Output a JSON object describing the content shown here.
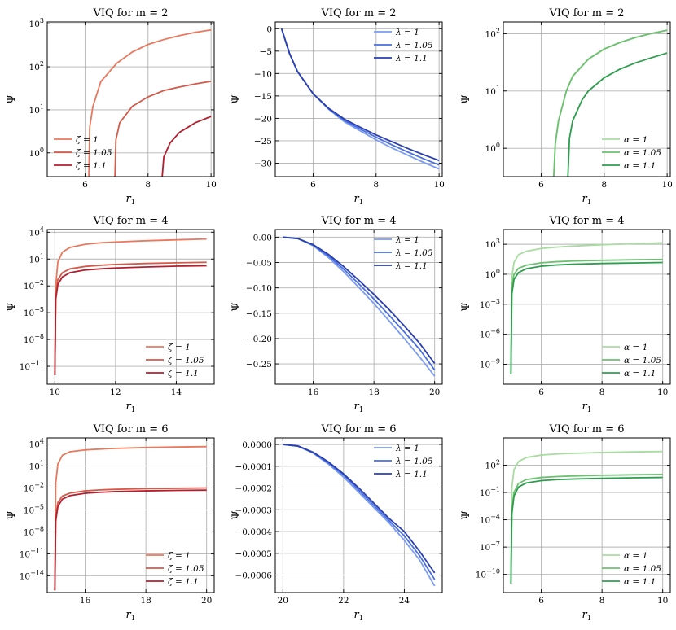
{
  "chart_data": [
    {
      "type": "line",
      "title": "VIQ for m = 2",
      "xlabel": "r_1",
      "ylabel": "Ψ",
      "xscale": "linear",
      "yscale": "log",
      "xlim": [
        4.8,
        10.1
      ],
      "ylim": [
        0.28,
        1100
      ],
      "xticks": [
        6,
        8,
        10
      ],
      "yticks": [
        1,
        10,
        100,
        1000
      ],
      "ytick_labels": [
        "10^0",
        "10^1",
        "10^2",
        "10^3"
      ],
      "legend_loc": "lower-left",
      "grid": true,
      "series": [
        {
          "name": "ζ = 1",
          "color": "#e8785e",
          "x": [
            6.12,
            6.15,
            6.25,
            6.5,
            7,
            7.5,
            8,
            8.5,
            9,
            9.5,
            10
          ],
          "y": [
            0.28,
            4,
            12,
            45,
            120,
            220,
            330,
            430,
            530,
            630,
            720
          ]
        },
        {
          "name": "ζ = 1.05",
          "color": "#d45a4a",
          "x": [
            6.95,
            6.98,
            7.1,
            7.5,
            8,
            8.5,
            9,
            9.5,
            10
          ],
          "y": [
            0.28,
            2,
            5,
            12,
            20,
            28,
            34,
            40,
            46
          ]
        },
        {
          "name": "ζ = 1.1",
          "color": "#b21f2d",
          "x": [
            8.45,
            8.5,
            8.7,
            9,
            9.5,
            10
          ],
          "y": [
            0.28,
            0.8,
            1.7,
            3,
            5,
            7
          ]
        }
      ]
    },
    {
      "type": "line",
      "title": "VIQ for m = 2",
      "xlabel": "r_1",
      "ylabel": "Ψ",
      "xscale": "linear",
      "yscale": "linear",
      "xlim": [
        4.8,
        10.1
      ],
      "ylim": [
        -33,
        1.5
      ],
      "xticks": [
        6,
        8,
        10
      ],
      "yticks": [
        0,
        -5,
        -10,
        -15,
        -20,
        -25,
        -30
      ],
      "ytick_labels": [
        "0",
        "−5",
        "−10",
        "−15",
        "−20",
        "−25",
        "−30"
      ],
      "legend_loc": "top-right",
      "grid": true,
      "series": [
        {
          "name": "λ = 1",
          "color": "#7b9cf0",
          "x": [
            5,
            5.25,
            5.5,
            6,
            6.5,
            7,
            7.5,
            8,
            8.5,
            9,
            9.5,
            10
          ],
          "y": [
            0,
            -5.5,
            -9.5,
            -14.5,
            -18,
            -20.8,
            -22.8,
            -24.8,
            -26.6,
            -28.2,
            -29.8,
            -31.3
          ]
        },
        {
          "name": "λ = 1.05",
          "color": "#4a6fe0",
          "x": [
            5,
            5.25,
            5.5,
            6,
            6.5,
            7,
            7.5,
            8,
            8.5,
            9,
            9.5,
            10
          ],
          "y": [
            0,
            -5.5,
            -9.5,
            -14.5,
            -17.9,
            -20.5,
            -22.4,
            -24.2,
            -25.9,
            -27.5,
            -29,
            -30.4
          ]
        },
        {
          "name": "λ = 1.1",
          "color": "#2a3fb0",
          "x": [
            5,
            5.25,
            5.5,
            6,
            6.5,
            7,
            7.5,
            8,
            8.5,
            9,
            9.5,
            10
          ],
          "y": [
            0,
            -5.5,
            -9.5,
            -14.5,
            -17.8,
            -20.2,
            -22,
            -23.7,
            -25.2,
            -26.7,
            -28.1,
            -29.4
          ]
        }
      ]
    },
    {
      "type": "line",
      "title": "VIQ for m = 2",
      "xlabel": "r_1",
      "ylabel": "Ψ",
      "xscale": "linear",
      "yscale": "log",
      "xlim": [
        4.8,
        10.1
      ],
      "ylim": [
        0.32,
        160
      ],
      "xticks": [
        6,
        8,
        10
      ],
      "yticks": [
        1,
        10,
        100
      ],
      "ytick_labels": [
        "10^0",
        "10^1",
        "10^2"
      ],
      "legend_loc": "lower-right",
      "grid": true,
      "series": [
        {
          "name": "α = 1",
          "color": "#a8dca0",
          "x": [
            6.4,
            6.45,
            6.55,
            6.8,
            7,
            7.5,
            8,
            8.5,
            9,
            9.5,
            10
          ],
          "y": [
            0.32,
            1.2,
            3,
            10,
            18,
            36,
            54,
            70,
            86,
            101,
            115
          ]
        },
        {
          "name": "α = 1.05",
          "color": "#6cc070",
          "x": [
            6.4,
            6.45,
            6.55,
            6.8,
            7,
            7.5,
            8,
            8.5,
            9,
            9.5,
            10
          ],
          "y": [
            0.32,
            1.2,
            3,
            10,
            18,
            36,
            54,
            70,
            86,
            101,
            115
          ]
        },
        {
          "name": "α = 1.1",
          "color": "#2e9e4e",
          "x": [
            6.85,
            6.9,
            7,
            7.3,
            7.5,
            8,
            8.5,
            9,
            9.5,
            10
          ],
          "y": [
            0.32,
            1.5,
            3,
            7,
            10,
            17,
            24,
            31,
            38,
            46
          ]
        }
      ]
    },
    {
      "type": "line",
      "title": "VIQ for m = 4",
      "xlabel": "r_1",
      "ylabel": "Ψ",
      "xscale": "linear",
      "yscale": "log",
      "xlim": [
        9.75,
        15.25
      ],
      "ylim": [
        1e-13,
        20000
      ],
      "xticks": [
        10,
        12,
        14
      ],
      "yticks": [
        1e-11,
        1e-08,
        1e-05,
        0.01,
        10,
        10000
      ],
      "ytick_labels": [
        "10^−11",
        "10^−8",
        "10^−5",
        "10^−2",
        "10^1",
        "10^4"
      ],
      "legend_loc": "lower-right",
      "grid": true,
      "series": [
        {
          "name": "ζ = 1",
          "color": "#e8785e",
          "x": [
            10,
            10.03,
            10.1,
            10.25,
            10.5,
            11,
            11.5,
            12,
            13,
            14,
            15
          ],
          "y": [
            1e-12,
            0.01,
            5,
            60,
            200,
            450,
            650,
            800,
            1100,
            1400,
            1750
          ]
        },
        {
          "name": "ζ = 1.05",
          "color": "#d45a4a",
          "x": [
            10,
            10.03,
            10.1,
            10.25,
            10.5,
            11,
            11.5,
            12,
            13,
            14,
            15
          ],
          "y": [
            1e-12,
            0.001,
            0.05,
            0.3,
            0.8,
            1.5,
            2,
            2.5,
            3.2,
            3.8,
            4.3
          ]
        },
        {
          "name": "ζ = 1.1",
          "color": "#b21f2d",
          "x": [
            10,
            10.03,
            10.1,
            10.25,
            10.5,
            11,
            11.5,
            12,
            13,
            14,
            15
          ],
          "y": [
            1e-12,
            0.0003,
            0.015,
            0.1,
            0.3,
            0.6,
            0.8,
            1,
            1.3,
            1.6,
            1.8
          ]
        }
      ]
    },
    {
      "type": "line",
      "title": "VIQ for m = 4",
      "xlabel": "r_1",
      "ylabel": "Ψ",
      "xscale": "linear",
      "yscale": "linear",
      "xlim": [
        14.75,
        20.25
      ],
      "ylim": [
        -0.29,
        0.015
      ],
      "xticks": [
        16,
        18,
        20
      ],
      "yticks": [
        0,
        -0.05,
        -0.1,
        -0.15,
        -0.2,
        -0.25
      ],
      "ytick_labels": [
        "0.00",
        "−0.05",
        "−0.10",
        "−0.15",
        "−0.20",
        "−0.25"
      ],
      "legend_loc": "top-right",
      "grid": true,
      "series": [
        {
          "name": "λ = 1",
          "color": "#7b9cf0",
          "x": [
            15,
            15.5,
            16,
            16.5,
            17,
            17.5,
            18,
            18.5,
            19,
            19.5,
            20
          ],
          "y": [
            0,
            -0.003,
            -0.017,
            -0.04,
            -0.068,
            -0.099,
            -0.131,
            -0.165,
            -0.2,
            -0.236,
            -0.274
          ]
        },
        {
          "name": "λ = 1.05",
          "color": "#4a6fe0",
          "x": [
            15,
            15.5,
            16,
            16.5,
            17,
            17.5,
            18,
            18.5,
            19,
            19.5,
            20
          ],
          "y": [
            0,
            -0.003,
            -0.016,
            -0.037,
            -0.063,
            -0.092,
            -0.122,
            -0.154,
            -0.187,
            -0.221,
            -0.262
          ]
        },
        {
          "name": "λ = 1.1",
          "color": "#2a3fb0",
          "x": [
            15,
            15.5,
            16,
            16.5,
            17,
            17.5,
            18,
            18.5,
            19,
            19.5,
            20
          ],
          "y": [
            0,
            -0.003,
            -0.015,
            -0.034,
            -0.058,
            -0.085,
            -0.113,
            -0.143,
            -0.175,
            -0.209,
            -0.249
          ]
        }
      ]
    },
    {
      "type": "line",
      "title": "VIQ for m = 4",
      "xlabel": "r_1",
      "ylabel": "Ψ",
      "xscale": "linear",
      "yscale": "log",
      "xlim": [
        4.75,
        10.25
      ],
      "ylim": [
        1e-11,
        30000
      ],
      "xticks": [
        6,
        8,
        10
      ],
      "yticks": [
        1e-09,
        1e-06,
        0.001,
        1,
        1000
      ],
      "ytick_labels": [
        "10^−9",
        "10^−6",
        "10^−3",
        "10^0",
        "10^3"
      ],
      "legend_loc": "lower-right",
      "grid": true,
      "series": [
        {
          "name": "α = 1",
          "color": "#a8dca0",
          "x": [
            5,
            5.03,
            5.1,
            5.25,
            5.5,
            6,
            6.5,
            7,
            8,
            9,
            10
          ],
          "y": [
            1e-10,
            0.5,
            15,
            90,
            200,
            380,
            520,
            650,
            900,
            1150,
            1400
          ]
        },
        {
          "name": "α = 1.05",
          "color": "#6cc070",
          "x": [
            5,
            5.03,
            5.1,
            5.25,
            5.5,
            6,
            6.5,
            7,
            8,
            9,
            10
          ],
          "y": [
            1e-10,
            0.05,
            1,
            4,
            8,
            14,
            18,
            21,
            25,
            28,
            30
          ]
        },
        {
          "name": "α = 1.1",
          "color": "#2e9e4e",
          "x": [
            5,
            5.03,
            5.1,
            5.25,
            5.5,
            6,
            6.5,
            7,
            8,
            9,
            10
          ],
          "y": [
            1e-10,
            0.01,
            0.3,
            1.5,
            3.5,
            6.5,
            8.5,
            10,
            12,
            13.5,
            15
          ]
        }
      ]
    },
    {
      "type": "line",
      "title": "VIQ for m = 6",
      "xlabel": "r_1",
      "ylabel": "Ψ",
      "xscale": "linear",
      "yscale": "log",
      "xlim": [
        14.75,
        20.25
      ],
      "ylim": [
        5e-17,
        70000
      ],
      "xticks": [
        16,
        18,
        20
      ],
      "yticks": [
        1e-14,
        1e-11,
        1e-08,
        1e-05,
        0.01,
        10,
        10000
      ],
      "ytick_labels": [
        "10^−14",
        "10^−11",
        "10^−8",
        "10^−5",
        "10^−2",
        "10^1",
        "10^4"
      ],
      "legend_loc": "lower-right",
      "grid": true,
      "series": [
        {
          "name": "ζ = 1",
          "color": "#e8785e",
          "x": [
            15,
            15.03,
            15.1,
            15.25,
            15.5,
            16,
            16.5,
            17,
            18,
            19,
            20
          ],
          "y": [
            1e-16,
            0.05,
            20,
            300,
            900,
            1600,
            2100,
            2600,
            3400,
            4000,
            4500
          ]
        },
        {
          "name": "ζ = 1.05",
          "color": "#d45a4a",
          "x": [
            15,
            15.03,
            15.1,
            15.25,
            15.5,
            16,
            16.5,
            17,
            18,
            19,
            20
          ],
          "y": [
            1e-16,
            1e-06,
            0.0001,
            0.0008,
            0.002,
            0.004,
            0.0055,
            0.0065,
            0.008,
            0.009,
            0.01
          ]
        },
        {
          "name": "ζ = 1.1",
          "color": "#b21f2d",
          "x": [
            15,
            15.03,
            15.1,
            15.25,
            15.5,
            16,
            16.5,
            17,
            18,
            19,
            20
          ],
          "y": [
            1e-16,
            3e-07,
            3e-05,
            0.0003,
            0.0009,
            0.0019,
            0.0026,
            0.0032,
            0.004,
            0.0046,
            0.005
          ]
        }
      ]
    },
    {
      "type": "line",
      "title": "VIQ for m = 6",
      "xlabel": "r_1",
      "ylabel": "Ψ",
      "xscale": "linear",
      "yscale": "linear",
      "xlim": [
        19.75,
        25.25
      ],
      "ylim": [
        -0.00068,
        3e-05
      ],
      "xticks": [
        20,
        22,
        24
      ],
      "yticks": [
        0,
        -0.0001,
        -0.0002,
        -0.0003,
        -0.0004,
        -0.0005,
        -0.0006
      ],
      "ytick_labels": [
        "0.0000",
        "−0.0001",
        "−0.0002",
        "−0.0003",
        "−0.0004",
        "−0.0005",
        "−0.0006"
      ],
      "legend_loc": "top-right",
      "grid": true,
      "series": [
        {
          "name": "λ = 1",
          "color": "#7b9cf0",
          "x": [
            20,
            20.5,
            21,
            21.5,
            22,
            22.5,
            23,
            23.5,
            24,
            24.5,
            25
          ],
          "y": [
            0,
            -8e-06,
            -4e-05,
            -9e-05,
            -0.00015,
            -0.00022,
            -0.00029,
            -0.00036,
            -0.00044,
            -0.00053,
            -0.00065
          ]
        },
        {
          "name": "λ = 1.05",
          "color": "#4a6fe0",
          "x": [
            20,
            20.5,
            21,
            21.5,
            22,
            22.5,
            23,
            23.5,
            24,
            24.5,
            25
          ],
          "y": [
            0,
            -8e-06,
            -3.8e-05,
            -8.5e-05,
            -0.00014,
            -0.00021,
            -0.00028,
            -0.00035,
            -0.00042,
            -0.00051,
            -0.00062
          ]
        },
        {
          "name": "λ = 1.1",
          "color": "#2a3fb0",
          "x": [
            20,
            20.5,
            21,
            21.5,
            22,
            22.5,
            23,
            23.5,
            24,
            24.5,
            25
          ],
          "y": [
            0,
            -7e-06,
            -3.6e-05,
            -8e-05,
            -0.000135,
            -0.0002,
            -0.00027,
            -0.00034,
            -0.0004,
            -0.00049,
            -0.00059
          ]
        }
      ]
    },
    {
      "type": "line",
      "title": "VIQ for m = 6",
      "xlabel": "r_1",
      "ylabel": "Ψ",
      "xscale": "linear",
      "yscale": "log",
      "xlim": [
        4.75,
        10.25
      ],
      "ylim": [
        1e-12,
        100000
      ],
      "xticks": [
        6,
        8,
        10
      ],
      "yticks": [
        1e-10,
        1e-07,
        0.0001,
        0.1,
        100
      ],
      "ytick_labels": [
        "10^−10",
        "10^−7",
        "10^−4",
        "10^−1",
        "10^2"
      ],
      "legend_loc": "lower-right",
      "grid": true,
      "series": [
        {
          "name": "α = 1",
          "color": "#a8dca0",
          "x": [
            5,
            5.03,
            5.1,
            5.25,
            5.5,
            6,
            6.5,
            7,
            8,
            9,
            10
          ],
          "y": [
            1e-11,
            0.3,
            30,
            250,
            700,
            1300,
            1700,
            2000,
            2500,
            2900,
            3200
          ]
        },
        {
          "name": "α = 1.05",
          "color": "#6cc070",
          "x": [
            5,
            5.03,
            5.1,
            5.25,
            5.5,
            6,
            6.5,
            7,
            8,
            9,
            10
          ],
          "y": [
            1e-11,
            0.001,
            0.1,
            1,
            2.6,
            4.5,
            5.6,
            6.5,
            7.8,
            8.8,
            9.5
          ]
        },
        {
          "name": "α = 1.1",
          "color": "#2e9e4e",
          "x": [
            5,
            5.03,
            5.1,
            5.25,
            5.5,
            6,
            6.5,
            7,
            8,
            9,
            10
          ],
          "y": [
            1e-11,
            0.0004,
            0.04,
            0.4,
            1.1,
            2,
            2.6,
            3,
            3.6,
            4.1,
            4.5
          ]
        }
      ]
    }
  ]
}
